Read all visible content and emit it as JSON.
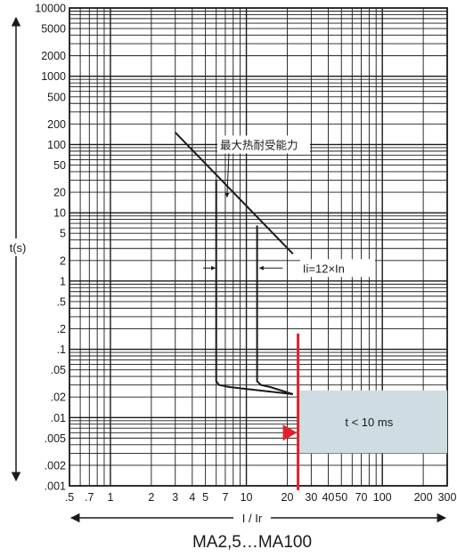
{
  "chart_data": {
    "type": "line",
    "title": "MA2,5…MA100",
    "xlabel": "I / Ir",
    "ylabel": "t(s)",
    "x_scale": "log",
    "y_scale": "log",
    "xlim": [
      0.5,
      300
    ],
    "ylim": [
      0.001,
      10000
    ],
    "grid": true,
    "x_ticks": [
      {
        "v": 0.5,
        "label": ".5"
      },
      {
        "v": 0.7,
        "label": ".7"
      },
      {
        "v": 1,
        "label": "1"
      },
      {
        "v": 2,
        "label": "2"
      },
      {
        "v": 3,
        "label": "3"
      },
      {
        "v": 4,
        "label": "4"
      },
      {
        "v": 5,
        "label": "5"
      },
      {
        "v": 7,
        "label": "7"
      },
      {
        "v": 10,
        "label": "10"
      },
      {
        "v": 20,
        "label": "20"
      },
      {
        "v": 30,
        "label": "30"
      },
      {
        "v": 40,
        "label": "40"
      },
      {
        "v": 50,
        "label": "50"
      },
      {
        "v": 70,
        "label": "70"
      },
      {
        "v": 100,
        "label": "100"
      },
      {
        "v": 200,
        "label": "200"
      },
      {
        "v": 300,
        "label": "300"
      }
    ],
    "y_ticks": [
      {
        "v": 10000,
        "label": "10000"
      },
      {
        "v": 5000,
        "label": "5000"
      },
      {
        "v": 2000,
        "label": "2000"
      },
      {
        "v": 1000,
        "label": "1000"
      },
      {
        "v": 500,
        "label": "500"
      },
      {
        "v": 200,
        "label": "200"
      },
      {
        "v": 100,
        "label": "100"
      },
      {
        "v": 50,
        "label": "50"
      },
      {
        "v": 20,
        "label": "20"
      },
      {
        "v": 10,
        "label": "10"
      },
      {
        "v": 5,
        "label": "5"
      },
      {
        "v": 2,
        "label": "2"
      },
      {
        "v": 1,
        "label": "1"
      },
      {
        "v": 0.5,
        "label": ".5"
      },
      {
        "v": 0.2,
        "label": ".2"
      },
      {
        "v": 0.1,
        "label": ".1"
      },
      {
        "v": 0.05,
        "label": ".05"
      },
      {
        "v": 0.02,
        "label": ".02"
      },
      {
        "v": 0.01,
        "label": ".01"
      },
      {
        "v": 0.005,
        "label": ".005"
      },
      {
        "v": 0.002,
        "label": ".002"
      },
      {
        "v": 0.001,
        "label": ".001"
      }
    ],
    "series": [
      {
        "color": "#1a1a1a",
        "points": [
          [
            3,
            150
          ],
          [
            22,
            2.5
          ]
        ]
      },
      {
        "color": "#1a1a1a",
        "points": [
          [
            6,
            30
          ],
          [
            6,
            0.034
          ],
          [
            6.3,
            0.03
          ],
          [
            7.5,
            0.028
          ],
          [
            22,
            0.022
          ]
        ]
      },
      {
        "color": "#1a1a1a",
        "points": [
          [
            12,
            6.5
          ],
          [
            12,
            0.034
          ],
          [
            12.8,
            0.03
          ],
          [
            15,
            0.028
          ],
          [
            22,
            0.022
          ]
        ]
      }
    ],
    "red_line_x": 24,
    "red_marker_y": 0.006,
    "shaded_region": {
      "x": [
        24,
        300
      ],
      "y": [
        0.003,
        0.025
      ],
      "color": "#cfdde3"
    },
    "annotations": {
      "max_thermal": "最大热耐受能力",
      "ii": "Ii=12×In",
      "t_less": "t < 10 ms"
    },
    "colors": {
      "curve": "#1a1a1a",
      "red": "#e3202a",
      "shade": "#cfdde3"
    }
  }
}
